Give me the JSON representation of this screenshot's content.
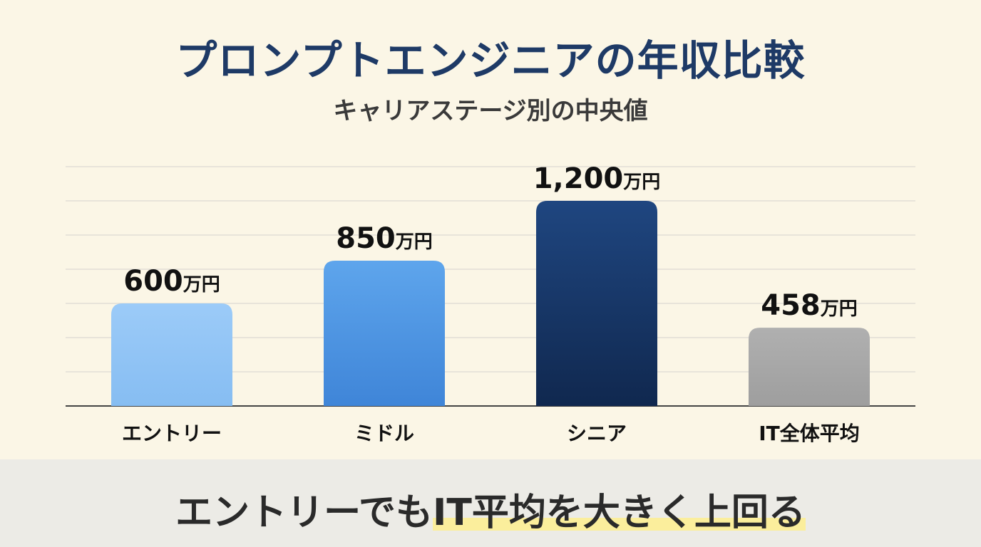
{
  "title": "プロンプトエンジニアの年収比較",
  "subtitle": "キャリアステージ別の中央値",
  "footer": {
    "text_plain": "エントリーでも",
    "text_highlight": "IT平均を大きく上回る"
  },
  "colors": {
    "background": "#fbf6e6",
    "title": "#1e3a66",
    "highlight": "#fbee9c"
  },
  "chart_data": {
    "type": "bar",
    "title": "プロンプトエンジニアの年収比較",
    "subtitle": "キャリアステージ別の中央値",
    "categories": [
      "エントリー",
      "ミドル",
      "シニア",
      "IT全体平均"
    ],
    "values": [
      600,
      850,
      1200,
      458
    ],
    "value_labels": [
      "600",
      "850",
      "1,200",
      "458"
    ],
    "unit": "万円",
    "ylim": [
      0,
      1400
    ],
    "grid": true,
    "bar_colors": [
      [
        "#9ccbf8",
        "#86bdf2"
      ],
      [
        "#5ea5ec",
        "#3f85d8"
      ],
      [
        "#1f4680",
        "#10284f"
      ],
      [
        "#b0b0b0",
        "#9e9e9e"
      ]
    ]
  }
}
